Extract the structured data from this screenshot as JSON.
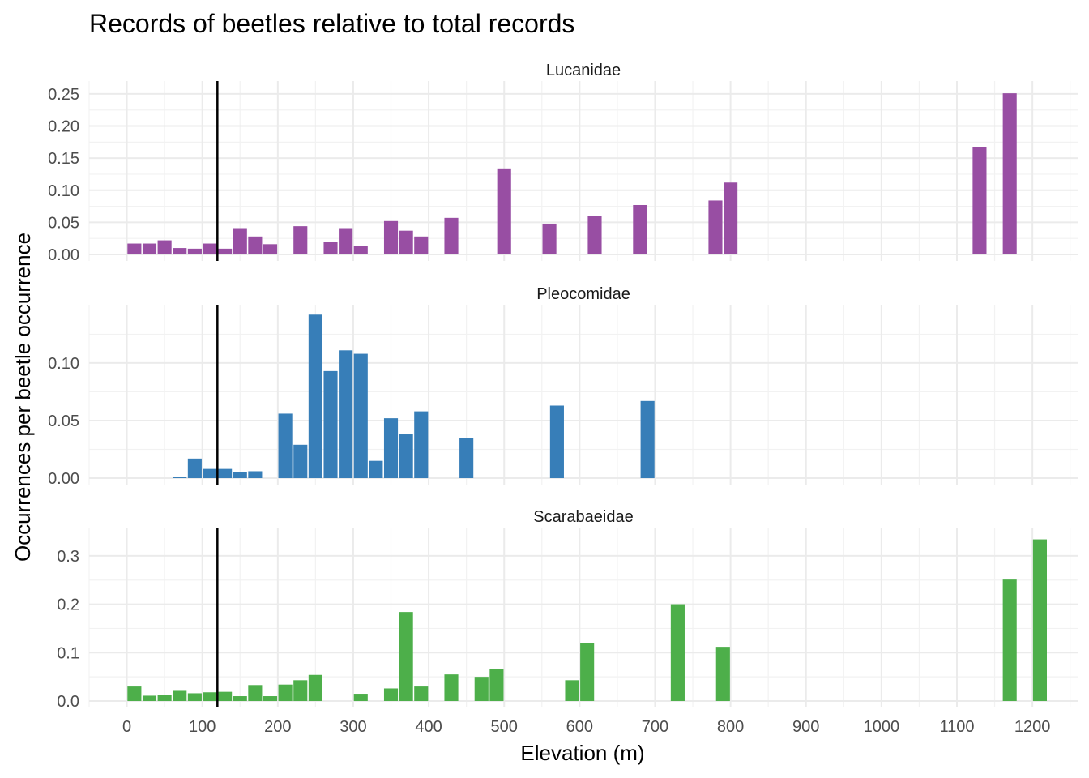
{
  "chart_data": {
    "type": "bar",
    "title": "Records of beetles relative to total records",
    "xlabel": "Elevation (m)",
    "ylabel": "Occurrences per beetle occurrence",
    "xlim": [
      -50,
      1260
    ],
    "x_ticks": [
      0,
      100,
      200,
      300,
      400,
      500,
      600,
      700,
      800,
      900,
      1000,
      1100,
      1200
    ],
    "bin_width": 20,
    "reference_line_x": 120,
    "grid": true,
    "facets": [
      {
        "name": "Lucanidae",
        "color": "#984EA3",
        "ylim": [
          0,
          0.26
        ],
        "y_ticks": [
          0.0,
          0.05,
          0.1,
          0.15,
          0.2,
          0.25
        ],
        "y_tick_labels": [
          "0.00",
          "0.05",
          "0.10",
          "0.15",
          "0.20",
          "0.25"
        ],
        "x": [
          10,
          30,
          50,
          70,
          90,
          110,
          130,
          150,
          170,
          190,
          230,
          270,
          290,
          310,
          350,
          370,
          390,
          430,
          500,
          560,
          620,
          680,
          780,
          800,
          1130,
          1170
        ],
        "values": [
          0.017,
          0.017,
          0.022,
          0.01,
          0.009,
          0.017,
          0.009,
          0.041,
          0.028,
          0.016,
          0.044,
          0.02,
          0.041,
          0.013,
          0.052,
          0.037,
          0.028,
          0.057,
          0.134,
          0.048,
          0.06,
          0.077,
          0.084,
          0.112,
          0.167,
          0.251
        ]
      },
      {
        "name": "Pleocomidae",
        "color": "#377EB8",
        "ylim": [
          0,
          0.145
        ],
        "y_ticks": [
          0.0,
          0.05,
          0.1
        ],
        "y_tick_labels": [
          "0.00",
          "0.05",
          "0.10"
        ],
        "x": [
          70,
          90,
          110,
          130,
          150,
          170,
          210,
          230,
          250,
          270,
          290,
          310,
          330,
          350,
          370,
          390,
          450,
          570,
          690
        ],
        "values": [
          0.001,
          0.017,
          0.008,
          0.008,
          0.005,
          0.006,
          0.056,
          0.029,
          0.142,
          0.093,
          0.111,
          0.108,
          0.015,
          0.052,
          0.038,
          0.058,
          0.035,
          0.063,
          0.067
        ]
      },
      {
        "name": "Scarabaeidae",
        "color": "#4DAF4A",
        "ylim": [
          0,
          0.345
        ],
        "y_ticks": [
          0.0,
          0.1,
          0.2,
          0.3
        ],
        "y_tick_labels": [
          "0.0",
          "0.1",
          "0.2",
          "0.3"
        ],
        "x": [
          10,
          30,
          50,
          70,
          90,
          110,
          130,
          150,
          170,
          190,
          210,
          230,
          250,
          310,
          350,
          370,
          390,
          430,
          470,
          490,
          590,
          610,
          730,
          790,
          1170,
          1210
        ],
        "values": [
          0.03,
          0.011,
          0.013,
          0.021,
          0.016,
          0.018,
          0.019,
          0.01,
          0.033,
          0.01,
          0.034,
          0.043,
          0.054,
          0.015,
          0.026,
          0.184,
          0.03,
          0.055,
          0.05,
          0.067,
          0.043,
          0.119,
          0.2,
          0.112,
          0.251,
          0.334
        ]
      }
    ]
  }
}
